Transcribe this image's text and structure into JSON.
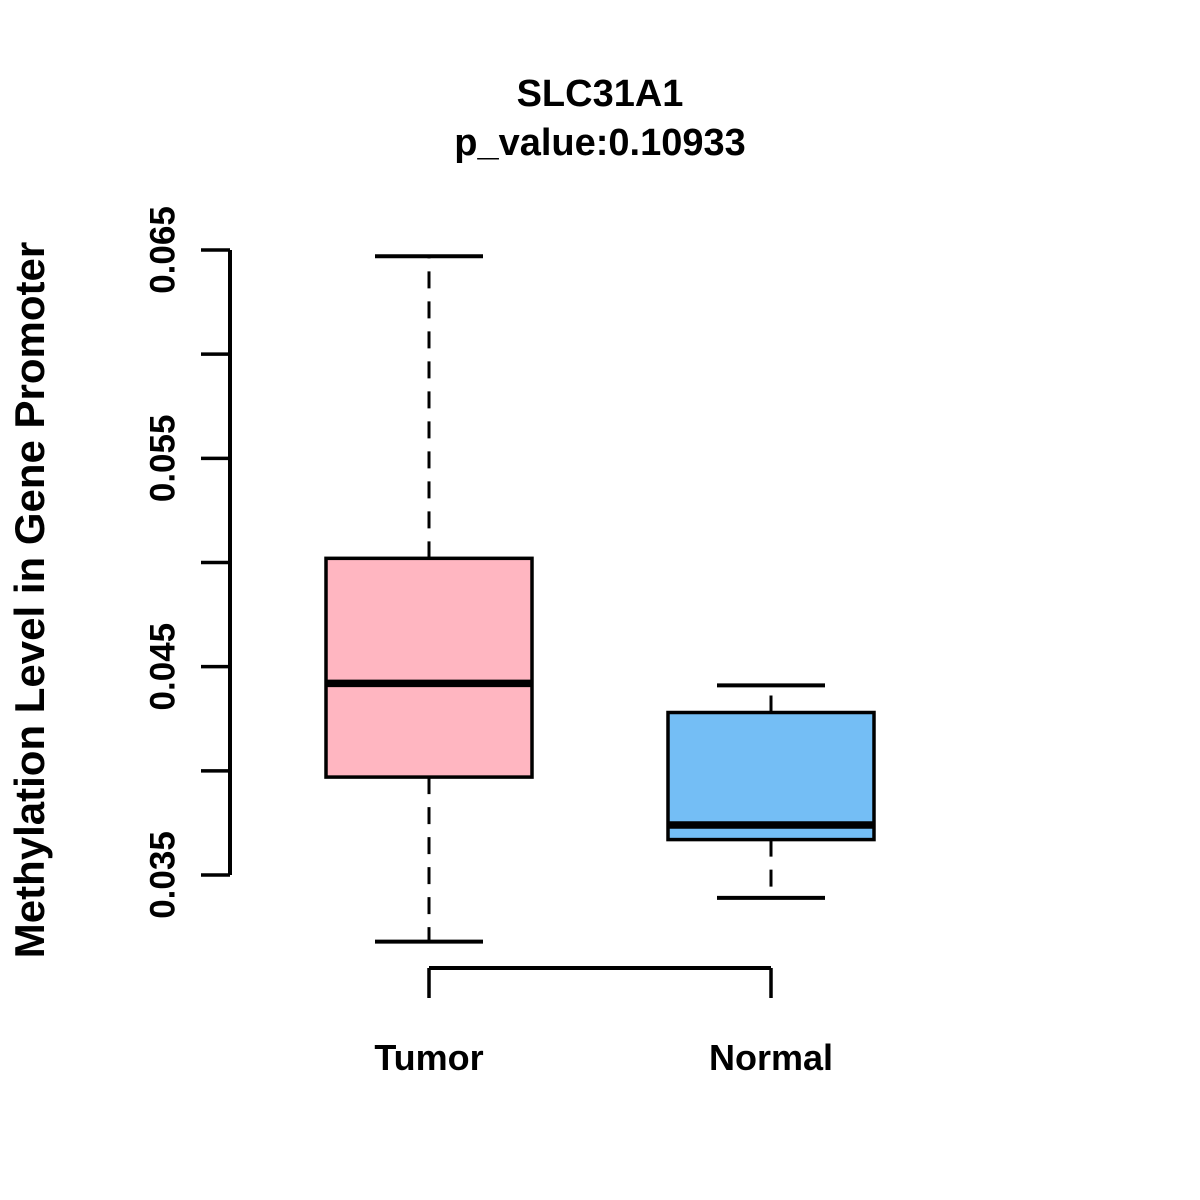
{
  "chart_data": {
    "type": "boxplot",
    "title": "SLC31A1",
    "subtitle": "p_value:0.10933",
    "ylabel": "Methylation Level in Gene Promoter",
    "xlabel": "",
    "categories": [
      "Tumor",
      "Normal"
    ],
    "series": [
      {
        "name": "Tumor",
        "min": 0.0318,
        "q1": 0.0397,
        "median": 0.0442,
        "q3": 0.0502,
        "max": 0.0647,
        "color": "#FFB6C1"
      },
      {
        "name": "Normal",
        "min": 0.0339,
        "q1": 0.0367,
        "median": 0.0374,
        "q3": 0.0428,
        "max": 0.0441,
        "color": "#74BEF5"
      }
    ],
    "y_axis": {
      "min": 0.035,
      "max": 0.065,
      "tick_step": 0.005,
      "label_step": 0.01,
      "tick_labels": [
        "0.035",
        "0.045",
        "0.055",
        "0.065"
      ]
    },
    "grid": false,
    "legend": false,
    "colors": {
      "stroke": "#000000",
      "background": "#FFFFFF"
    }
  }
}
